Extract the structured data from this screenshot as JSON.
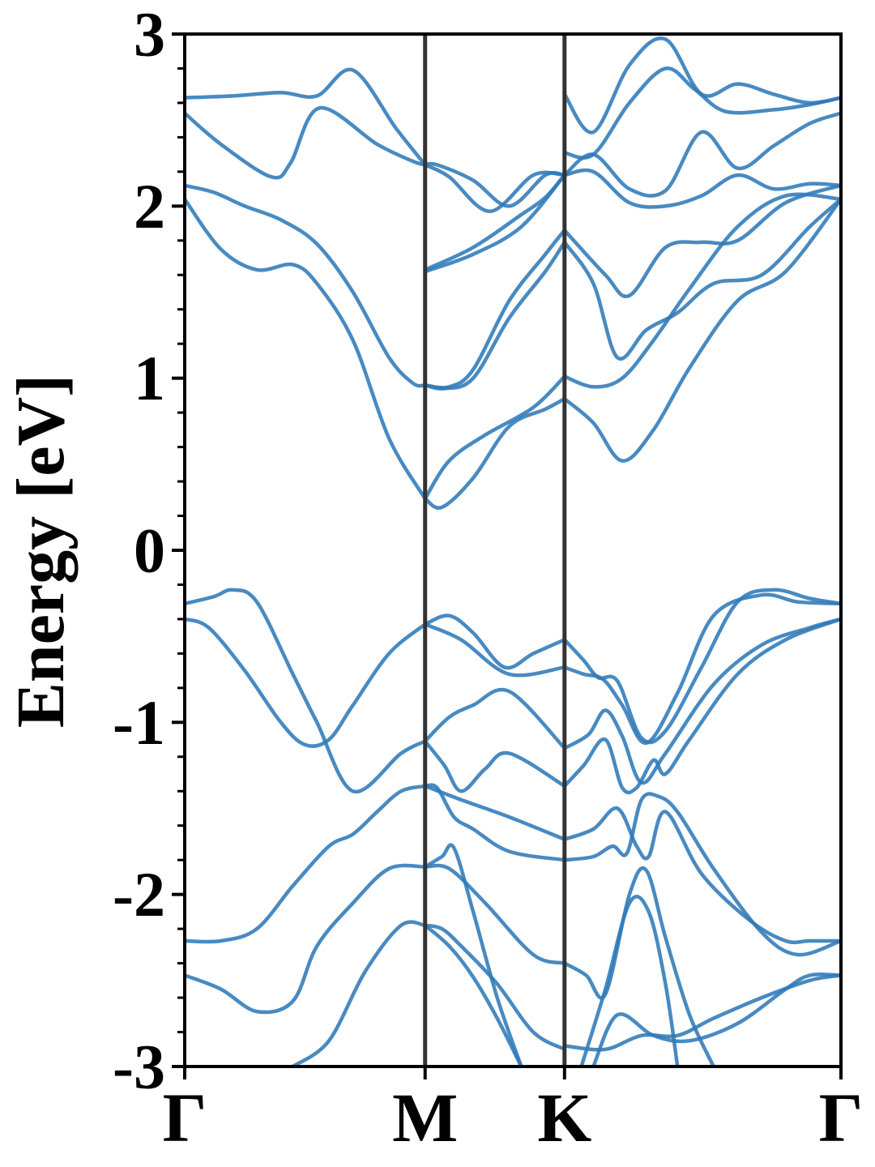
{
  "chart_data": {
    "type": "line",
    "title": "",
    "xlabel": "",
    "ylabel": "Energy [eV]",
    "ylim": [
      -3,
      3
    ],
    "y_ticks": [
      3,
      2,
      1,
      0,
      -1,
      -2,
      -3
    ],
    "y_tick_labels": [
      "3",
      "2",
      "1",
      "0",
      "-1",
      "-2",
      "-3"
    ],
    "y_minor_step": 0.2,
    "x_range": [
      0,
      2.73
    ],
    "k_points": [
      {
        "label": "Γ",
        "x": 0
      },
      {
        "label": "M",
        "x": 1
      },
      {
        "label": "K",
        "x": 1.58
      },
      {
        "label": "Γ",
        "x": 2.73
      }
    ],
    "grid": false,
    "legend": "none",
    "colors": {
      "band": "#2f7ab8",
      "kline": "#333333",
      "axis": "#000000"
    },
    "series": [
      {
        "x": [
          0,
          0.2,
          0.4,
          0.55,
          0.7,
          0.88,
          1.0
        ],
        "y": [
          2.63,
          2.64,
          2.66,
          2.64,
          2.79,
          2.45,
          2.24
        ]
      },
      {
        "x": [
          0,
          0.15,
          0.36,
          0.44,
          0.56,
          0.8,
          0.95,
          1.0
        ],
        "y": [
          2.54,
          2.36,
          2.17,
          2.25,
          2.57,
          2.36,
          2.26,
          2.24
        ]
      },
      {
        "x": [
          0,
          0.12,
          0.25,
          0.4,
          0.55,
          0.7,
          0.85,
          0.95,
          1.0
        ],
        "y": [
          2.12,
          2.08,
          2.0,
          1.92,
          1.78,
          1.5,
          1.12,
          0.97,
          0.96
        ]
      },
      {
        "x": [
          0,
          0.15,
          0.3,
          0.45,
          0.55,
          0.7,
          0.85,
          1.0
        ],
        "y": [
          2.04,
          1.75,
          1.63,
          1.66,
          1.55,
          1.22,
          0.65,
          0.3
        ]
      },
      {
        "x": [
          1.0,
          1.05,
          1.2,
          1.35,
          1.5,
          1.58
        ],
        "y": [
          2.24,
          2.24,
          2.15,
          2.0,
          2.18,
          2.18
        ]
      },
      {
        "x": [
          1.0,
          1.1,
          1.27,
          1.45,
          1.58
        ],
        "y": [
          2.24,
          2.17,
          1.97,
          2.18,
          2.18
        ]
      },
      {
        "x": [
          1.0,
          1.2,
          1.4,
          1.58
        ],
        "y": [
          1.62,
          1.72,
          1.88,
          2.18
        ]
      },
      {
        "x": [
          1.0,
          1.2,
          1.4,
          1.5,
          1.58
        ],
        "y": [
          1.63,
          1.76,
          1.95,
          2.05,
          2.18
        ]
      },
      {
        "x": [
          1.0,
          1.1,
          1.2,
          1.35,
          1.5,
          1.58
        ],
        "y": [
          0.96,
          0.95,
          1.05,
          1.45,
          1.72,
          1.86
        ]
      },
      {
        "x": [
          1.0,
          1.08,
          1.2,
          1.35,
          1.5,
          1.58
        ],
        "y": [
          0.96,
          0.94,
          1.0,
          1.35,
          1.62,
          1.79
        ]
      },
      {
        "x": [
          1.0,
          1.1,
          1.25,
          1.45,
          1.58
        ],
        "y": [
          0.3,
          0.52,
          0.67,
          0.83,
          1.01
        ]
      },
      {
        "x": [
          1.0,
          1.07,
          1.2,
          1.35,
          1.5,
          1.58
        ],
        "y": [
          0.3,
          0.25,
          0.42,
          0.72,
          0.82,
          0.88
        ]
      },
      {
        "x": [
          1.58,
          1.7,
          1.85,
          2.0,
          2.15,
          2.3,
          2.45,
          2.6,
          2.73
        ],
        "y": [
          2.65,
          2.43,
          2.82,
          2.97,
          2.65,
          2.71,
          2.65,
          2.6,
          2.63
        ]
      },
      {
        "x": [
          1.58,
          1.7,
          1.85,
          2.0,
          2.12,
          2.25,
          2.45,
          2.6,
          2.73
        ],
        "y": [
          2.31,
          2.3,
          2.6,
          2.8,
          2.68,
          2.55,
          2.56,
          2.59,
          2.63
        ]
      },
      {
        "x": [
          1.58,
          1.7,
          1.85,
          2.0,
          2.15,
          2.3,
          2.45,
          2.6,
          2.73
        ],
        "y": [
          2.18,
          2.3,
          2.1,
          2.09,
          2.43,
          2.22,
          2.35,
          2.48,
          2.54
        ]
      },
      {
        "x": [
          1.58,
          1.7,
          1.85,
          2.0,
          2.15,
          2.3,
          2.45,
          2.6,
          2.73
        ],
        "y": [
          2.18,
          2.2,
          2.02,
          2.0,
          2.06,
          2.18,
          2.1,
          2.13,
          2.12
        ]
      },
      {
        "x": [
          1.58,
          1.75,
          1.85,
          2.0,
          2.15,
          2.3,
          2.5,
          2.73
        ],
        "y": [
          1.86,
          1.6,
          1.48,
          1.76,
          1.79,
          1.8,
          2.02,
          2.12
        ]
      },
      {
        "x": [
          1.58,
          1.7,
          1.8,
          1.92,
          2.05,
          2.2,
          2.4,
          2.6,
          2.73
        ],
        "y": [
          1.79,
          1.55,
          1.12,
          1.28,
          1.38,
          1.55,
          1.6,
          1.88,
          2.04
        ]
      },
      {
        "x": [
          1.58,
          1.7,
          1.82,
          1.95,
          2.1,
          2.3,
          2.5,
          2.73
        ],
        "y": [
          1.01,
          0.95,
          1.0,
          1.22,
          1.52,
          1.88,
          2.06,
          2.04
        ]
      },
      {
        "x": [
          1.58,
          1.7,
          1.82,
          1.95,
          2.1,
          2.3,
          2.5,
          2.73
        ],
        "y": [
          0.88,
          0.74,
          0.52,
          0.7,
          1.06,
          1.45,
          1.62,
          2.04
        ]
      },
      {
        "x": [
          0,
          0.12,
          0.2,
          0.3,
          0.45,
          0.55,
          0.7,
          0.9,
          1.0
        ],
        "y": [
          -0.31,
          -0.27,
          -0.23,
          -0.3,
          -0.72,
          -1.0,
          -1.4,
          -1.18,
          -1.11
        ]
      },
      {
        "x": [
          0,
          0.1,
          0.25,
          0.4,
          0.5,
          0.6,
          0.7,
          0.85,
          1.0
        ],
        "y": [
          -0.4,
          -0.45,
          -0.7,
          -1.0,
          -1.13,
          -1.1,
          -0.9,
          -0.6,
          -0.43
        ]
      },
      {
        "x": [
          1.0,
          1.15,
          1.35,
          1.58
        ],
        "y": [
          -0.43,
          -0.52,
          -0.72,
          -0.68
        ]
      },
      {
        "x": [
          1.0,
          1.1,
          1.2,
          1.33,
          1.45,
          1.58
        ],
        "y": [
          -0.43,
          -0.38,
          -0.48,
          -0.68,
          -0.6,
          -0.52
        ]
      },
      {
        "x": [
          1.0,
          1.1,
          1.2,
          1.35,
          1.58
        ],
        "y": [
          -1.11,
          -0.97,
          -0.9,
          -0.82,
          -1.15
        ]
      },
      {
        "x": [
          1.0,
          1.08,
          1.15,
          1.25,
          1.35,
          1.58
        ],
        "y": [
          -1.11,
          -1.25,
          -1.4,
          -1.27,
          -1.18,
          -1.37
        ]
      },
      {
        "x": [
          1.0,
          1.15,
          1.35,
          1.58
        ],
        "y": [
          -1.37,
          -1.45,
          -1.55,
          -1.68
        ]
      },
      {
        "x": [
          1.0,
          1.05,
          1.12,
          1.2,
          1.35,
          1.58
        ],
        "y": [
          -1.37,
          -1.38,
          -1.55,
          -1.62,
          -1.75,
          -1.8
        ]
      },
      {
        "x": [
          0,
          0.15,
          0.3,
          0.45,
          0.6,
          0.7,
          0.8,
          0.9,
          1.0
        ],
        "y": [
          -2.27,
          -2.27,
          -2.2,
          -1.95,
          -1.72,
          -1.65,
          -1.52,
          -1.4,
          -1.37
        ]
      },
      {
        "x": [
          0,
          0.15,
          0.3,
          0.45,
          0.55,
          0.7,
          0.85,
          1.0
        ],
        "y": [
          -2.47,
          -2.55,
          -2.68,
          -2.62,
          -2.3,
          -2.05,
          -1.85,
          -1.84
        ]
      },
      {
        "x": [
          0.45,
          0.6,
          0.75,
          0.9,
          1.0
        ],
        "y": [
          -3.0,
          -2.85,
          -2.45,
          -2.18,
          -2.18
        ]
      },
      {
        "x": [
          1.0,
          1.1,
          1.25,
          1.45,
          1.58
        ],
        "y": [
          -1.84,
          -1.85,
          -2.05,
          -2.35,
          -2.4
        ]
      },
      {
        "x": [
          1.0,
          1.07,
          1.12,
          1.2,
          1.3,
          1.4
        ],
        "y": [
          -1.84,
          -1.78,
          -1.73,
          -2.1,
          -2.6,
          -3.0
        ]
      },
      {
        "x": [
          1.0,
          1.07,
          1.15,
          1.3,
          1.45,
          1.58
        ],
        "y": [
          -2.18,
          -2.2,
          -2.3,
          -2.52,
          -2.8,
          -2.9
        ]
      },
      {
        "x": [
          1.0,
          1.1,
          1.2,
          1.3,
          1.4
        ],
        "y": [
          -2.18,
          -2.3,
          -2.48,
          -2.72,
          -3.0
        ]
      },
      {
        "x": [
          1.58,
          1.66,
          1.74,
          1.82,
          1.92,
          2.05,
          2.2,
          2.4,
          2.55,
          2.73
        ],
        "y": [
          -0.68,
          -0.72,
          -0.75,
          -0.9,
          -1.12,
          -0.83,
          -0.38,
          -0.26,
          -0.3,
          -0.31
        ]
      },
      {
        "x": [
          1.58,
          1.66,
          1.72,
          1.8,
          1.9,
          2.0,
          2.15,
          2.3,
          2.45,
          2.6,
          2.73
        ],
        "y": [
          -0.52,
          -0.64,
          -0.74,
          -0.76,
          -1.09,
          -1.05,
          -0.68,
          -0.3,
          -0.23,
          -0.28,
          -0.31
        ]
      },
      {
        "x": [
          1.58,
          1.68,
          1.75,
          1.82,
          1.9,
          2.0,
          2.2,
          2.4,
          2.6,
          2.73
        ],
        "y": [
          -1.15,
          -1.07,
          -0.93,
          -1.08,
          -1.35,
          -1.18,
          -0.78,
          -0.55,
          -0.45,
          -0.4
        ]
      },
      {
        "x": [
          1.58,
          1.66,
          1.75,
          1.82,
          1.88,
          1.95,
          2.0,
          2.1,
          2.3,
          2.5,
          2.73
        ],
        "y": [
          -1.37,
          -1.25,
          -1.1,
          -1.38,
          -1.38,
          -1.22,
          -1.3,
          -1.1,
          -0.72,
          -0.52,
          -0.4
        ]
      },
      {
        "x": [
          1.58,
          1.7,
          1.8,
          1.88,
          1.93,
          2.0,
          2.15,
          2.35,
          2.5,
          2.6,
          2.73
        ],
        "y": [
          -1.68,
          -1.62,
          -1.5,
          -1.72,
          -1.78,
          -1.52,
          -1.88,
          -2.15,
          -2.27,
          -2.27,
          -2.27
        ]
      },
      {
        "x": [
          1.58,
          1.7,
          1.78,
          1.84,
          1.9,
          1.97,
          2.05,
          2.2,
          2.4,
          2.55,
          2.73
        ],
        "y": [
          -1.8,
          -1.78,
          -1.72,
          -1.76,
          -1.45,
          -1.43,
          -1.52,
          -1.85,
          -2.22,
          -2.35,
          -2.27
        ]
      },
      {
        "x": [
          1.58,
          1.67,
          1.75,
          1.85,
          1.92,
          2.0,
          2.1,
          2.2
        ],
        "y": [
          -2.4,
          -2.47,
          -2.58,
          -2.0,
          -1.86,
          -2.25,
          -2.7,
          -3.0
        ]
      },
      {
        "x": [
          1.65,
          1.75,
          1.85,
          1.93,
          2.0,
          2.05
        ],
        "y": [
          -3.0,
          -2.55,
          -2.05,
          -2.1,
          -2.52,
          -3.0
        ]
      },
      {
        "x": [
          1.58,
          1.75,
          1.9,
          2.05,
          2.2,
          2.4,
          2.6,
          2.73
        ],
        "y": [
          -2.88,
          -2.9,
          -2.82,
          -2.82,
          -2.72,
          -2.6,
          -2.5,
          -2.47
        ]
      },
      {
        "x": [
          1.7,
          1.8,
          1.95,
          2.1,
          2.3,
          2.5,
          2.6,
          2.73
        ],
        "y": [
          -3.0,
          -2.7,
          -2.82,
          -2.85,
          -2.75,
          -2.55,
          -2.47,
          -2.47
        ]
      }
    ]
  }
}
